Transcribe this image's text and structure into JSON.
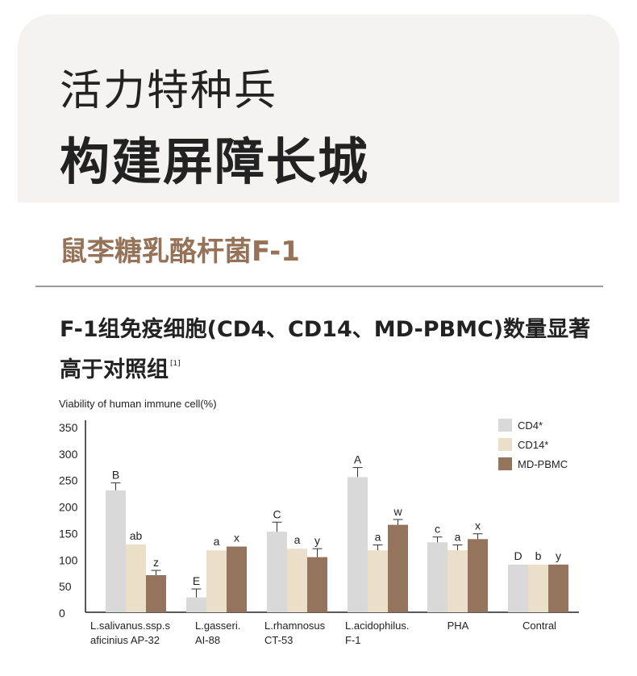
{
  "header": {
    "title_line1": "活力特种兵",
    "title_line2": "构建屏障长城"
  },
  "product": {
    "name": "鼠李糖乳酪杆菌F-1"
  },
  "claim": {
    "text": "F-1组免疫细胞(CD4、CD14、MD-PBMC)数量显著高于对照组",
    "ref": "[1]"
  },
  "colors": {
    "cd4": "#d9d9d9",
    "cd14": "#ecdfca",
    "md_pbmc": "#94745d",
    "hero_bg": "#f4f3f2",
    "accent": "#957258"
  },
  "chart_data": {
    "type": "bar",
    "ylabel": "Viability of human immune cell(%)",
    "ylim": [
      0,
      350
    ],
    "yticks": [
      0,
      50,
      100,
      150,
      200,
      250,
      300,
      350
    ],
    "legend_position": "top-right",
    "categories": [
      [
        "L.salivanus.ssp.s",
        "aficinius AP-32"
      ],
      [
        "L.gasseri.",
        "AI-88"
      ],
      [
        "L.rhamnosus",
        "CT-53"
      ],
      [
        "L.acidophilus.",
        "F-1"
      ],
      [
        "PHA"
      ],
      [
        "Contral"
      ]
    ],
    "series": [
      {
        "name": "CD4*",
        "color": "#d9d9d9",
        "values": [
          230,
          28,
          152,
          255,
          132,
          90
        ],
        "errors": [
          14,
          16,
          18,
          18,
          10,
          0
        ],
        "labels": [
          "B",
          "E",
          "C",
          "A",
          "c",
          "D"
        ]
      },
      {
        "name": "CD14*",
        "color": "#ecdfca",
        "values": [
          128,
          117,
          120,
          117,
          117,
          90
        ],
        "errors": [
          0,
          0,
          0,
          10,
          10,
          0
        ],
        "labels": [
          "ab",
          "a",
          "a",
          "a",
          "a",
          "b"
        ]
      },
      {
        "name": "MD-PBMC",
        "color": "#94745d",
        "values": [
          70,
          124,
          104,
          165,
          138,
          90
        ],
        "errors": [
          9,
          0,
          16,
          10,
          10,
          0
        ],
        "labels": [
          "z",
          "x",
          "y",
          "w",
          "x",
          "y"
        ]
      }
    ]
  }
}
